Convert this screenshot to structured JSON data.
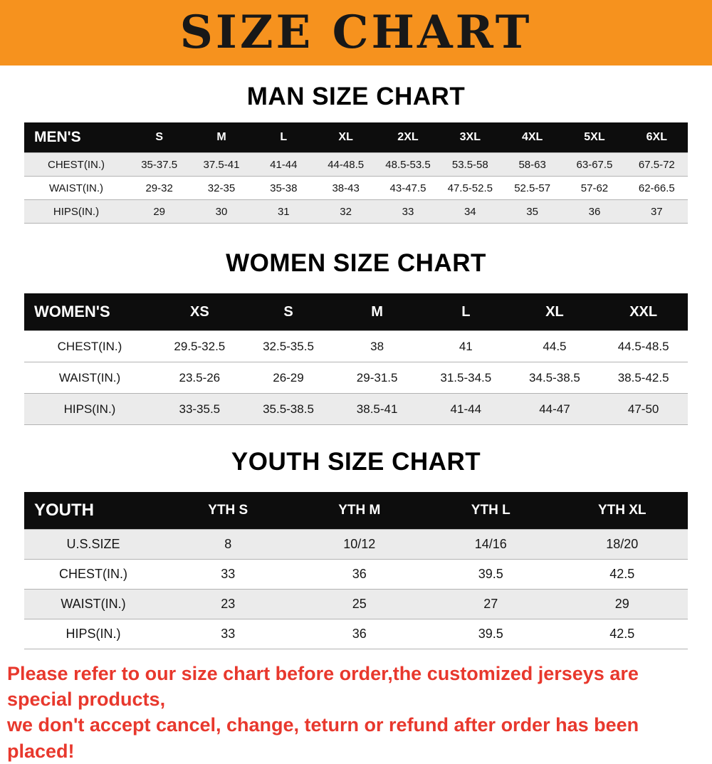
{
  "banner": {
    "title": "SIZE CHART",
    "bg_color": "#f6921e",
    "text_color": "#181818"
  },
  "sections": [
    {
      "heading": "MAN SIZE CHART",
      "table": {
        "label": "MEN'S",
        "columns": [
          "S",
          "M",
          "L",
          "XL",
          "2XL",
          "3XL",
          "4XL",
          "5XL",
          "6XL"
        ],
        "rows": [
          {
            "label": "CHEST(IN.)",
            "values": [
              "35-37.5",
              "37.5-41",
              "41-44",
              "44-48.5",
              "48.5-53.5",
              "53.5-58",
              "58-63",
              "63-67.5",
              "67.5-72"
            ]
          },
          {
            "label": "WAIST(IN.)",
            "values": [
              "29-32",
              "32-35",
              "35-38",
              "38-43",
              "43-47.5",
              "47.5-52.5",
              "52.5-57",
              "57-62",
              "62-66.5"
            ]
          },
          {
            "label": "HIPS(IN.)",
            "values": [
              "29",
              "30",
              "31",
              "32",
              "33",
              "34",
              "35",
              "36",
              "37"
            ]
          }
        ]
      }
    },
    {
      "heading": "WOMEN SIZE CHART",
      "table": {
        "label": "WOMEN'S",
        "columns": [
          "XS",
          "S",
          "M",
          "L",
          "XL",
          "XXL"
        ],
        "rows": [
          {
            "label": "CHEST(IN.)",
            "values": [
              "29.5-32.5",
              "32.5-35.5",
              "38",
              "41",
              "44.5",
              "44.5-48.5"
            ]
          },
          {
            "label": "WAIST(IN.)",
            "values": [
              "23.5-26",
              "26-29",
              "29-31.5",
              "31.5-34.5",
              "34.5-38.5",
              "38.5-42.5"
            ]
          },
          {
            "label": "HIPS(IN.)",
            "values": [
              "33-35.5",
              "35.5-38.5",
              "38.5-41",
              "41-44",
              "44-47",
              "47-50"
            ]
          }
        ]
      }
    },
    {
      "heading": "YOUTH SIZE CHART",
      "table": {
        "label": "YOUTH",
        "columns": [
          "YTH S",
          "YTH M",
          "YTH L",
          "YTH XL"
        ],
        "rows": [
          {
            "label": "U.S.SIZE",
            "values": [
              "8",
              "10/12",
              "14/16",
              "18/20"
            ]
          },
          {
            "label": "CHEST(IN.)",
            "values": [
              "33",
              "36",
              "39.5",
              "42.5"
            ]
          },
          {
            "label": "WAIST(IN.)",
            "values": [
              "23",
              "25",
              "27",
              "29"
            ]
          },
          {
            "label": "HIPS(IN.)",
            "values": [
              "33",
              "36",
              "39.5",
              "42.5"
            ]
          }
        ]
      }
    }
  ],
  "footer": {
    "line1": "Please refer to our size chart before order,the customized jerseys are special products,",
    "line2": "we don't accept cancel, change, teturn or refund after order has been placed!",
    "color": "#e8382d"
  },
  "stripe_color": "#ebebeb"
}
